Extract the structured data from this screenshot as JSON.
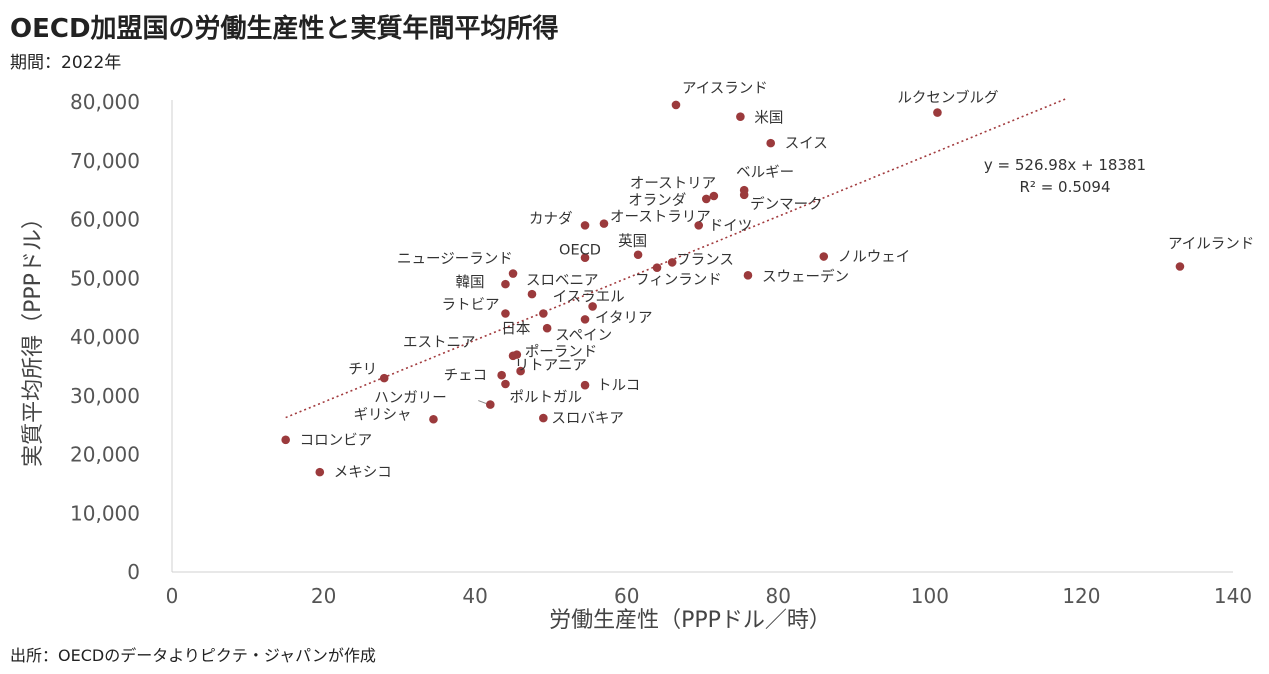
{
  "header": {
    "title": "OECD加盟国の労働生産性と実質年間平均所得",
    "subtitle": "期間：2022年"
  },
  "footer": {
    "source": "出所：OECDのデータよりピクテ・ジャパンが作成"
  },
  "colors": {
    "point": "#9b3a3c",
    "trendline": "#a23b3e",
    "axis": "#d0d0d0"
  },
  "chart_data": {
    "type": "scatter",
    "xlabel": "労働生産性（PPPドル／時）",
    "ylabel": "実質平均所得（PPPドル）",
    "xlim": [
      0,
      140
    ],
    "ylim": [
      0,
      80000
    ],
    "xticks": [
      "0",
      "20",
      "40",
      "60",
      "80",
      "100",
      "120",
      "140"
    ],
    "yticks": [
      "0",
      "10,000",
      "20,000",
      "30,000",
      "40,000",
      "50,000",
      "60,000",
      "70,000",
      "80,000"
    ],
    "trendline": {
      "slope": 526.98,
      "intercept": 18381,
      "x_range": [
        15,
        118
      ],
      "equation": "y = 526.98x + 18381",
      "r2": "R² = 0.5094"
    },
    "points": [
      {
        "name": "アイスランド",
        "x": 66.5,
        "y": 79500
      },
      {
        "name": "ルクセンブルグ",
        "x": 101.0,
        "y": 78200
      },
      {
        "name": "米国",
        "x": 75.0,
        "y": 77500
      },
      {
        "name": "スイス",
        "x": 79.0,
        "y": 73000
      },
      {
        "name": "ベルギー",
        "x": 75.5,
        "y": 65000
      },
      {
        "name": "オーストリア",
        "x": 71.5,
        "y": 64000
      },
      {
        "name": "オランダ",
        "x": 70.5,
        "y": 63500
      },
      {
        "name": "デンマーク",
        "x": 75.5,
        "y": 64200
      },
      {
        "name": "カナダ",
        "x": 54.5,
        "y": 59000
      },
      {
        "name": "オーストラリア",
        "x": 57.0,
        "y": 59300
      },
      {
        "name": "ドイツ",
        "x": 69.5,
        "y": 59000
      },
      {
        "name": "OECD",
        "x": 54.5,
        "y": 53500
      },
      {
        "name": "英国",
        "x": 61.5,
        "y": 54000
      },
      {
        "name": "フランス",
        "x": 66.0,
        "y": 52700
      },
      {
        "name": "フィンランド",
        "x": 64.0,
        "y": 51800
      },
      {
        "name": "ノルウェイ",
        "x": 86.0,
        "y": 53700
      },
      {
        "name": "スウェーデン",
        "x": 76.0,
        "y": 50500
      },
      {
        "name": "アイルランド",
        "x": 133.0,
        "y": 52000
      },
      {
        "name": "ニュージーランド",
        "x": 45.0,
        "y": 50800
      },
      {
        "name": "韓国",
        "x": 44.0,
        "y": 49000
      },
      {
        "name": "スロベニア",
        "x": 47.5,
        "y": 47300
      },
      {
        "name": "イスラエル",
        "x": 55.5,
        "y": 45200
      },
      {
        "name": "ラトビア",
        "x": 44.0,
        "y": 44000
      },
      {
        "name": "イタリア",
        "x": 54.5,
        "y": 43000
      },
      {
        "name": "日本",
        "x": 49.0,
        "y": 44000
      },
      {
        "name": "スペイン",
        "x": 49.5,
        "y": 41500
      },
      {
        "name": "エストニア",
        "x": 45.0,
        "y": 36800
      },
      {
        "name": "ポーランド",
        "x": 45.5,
        "y": 37000
      },
      {
        "name": "リトアニア",
        "x": 46.0,
        "y": 34200
      },
      {
        "name": "チリ",
        "x": 28.0,
        "y": 33000
      },
      {
        "name": "チェコ",
        "x": 43.5,
        "y": 33500
      },
      {
        "name": "トルコ",
        "x": 54.5,
        "y": 31800
      },
      {
        "name": "ポルトガル",
        "x": 44.0,
        "y": 32000
      },
      {
        "name": "ハンガリー",
        "x": 42.0,
        "y": 28500
      },
      {
        "name": "ギリシャ",
        "x": 34.5,
        "y": 26000
      },
      {
        "name": "スロバキア",
        "x": 49.0,
        "y": 26200
      },
      {
        "name": "コロンビア",
        "x": 15.0,
        "y": 22500
      },
      {
        "name": "メキシコ",
        "x": 19.5,
        "y": 17000
      }
    ]
  }
}
